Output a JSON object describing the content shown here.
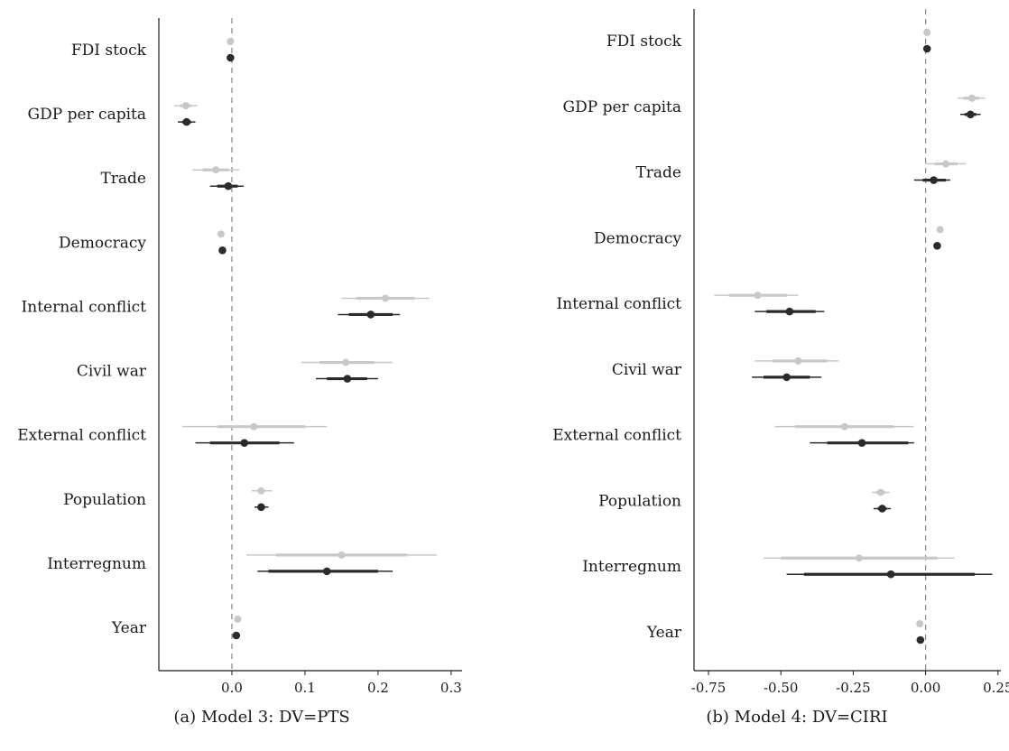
{
  "chart_data": [
    {
      "type": "scatter",
      "caption": "(a) Model 3: DV=PTS",
      "xlabel": "",
      "ylabel": "",
      "xlim": [
        -0.1,
        0.315
      ],
      "xticks": [
        0.0,
        0.1,
        0.2,
        0.3
      ],
      "xtick_labels": [
        "0.0",
        "0.1",
        "0.2",
        "0.3"
      ],
      "reference_line": 0,
      "categories": [
        "FDI stock",
        "GDP per capita",
        "Trade",
        "Democracy",
        "Internal conflict",
        "Civil war",
        "External conflict",
        "Population",
        "Interregnum",
        "Year"
      ],
      "series": [
        {
          "color": "#c8c8c8",
          "estimates": [
            -0.002,
            -0.063,
            -0.022,
            -0.015,
            0.21,
            0.156,
            0.03,
            0.04,
            0.15,
            0.008
          ],
          "ci_inner": [
            [
              -0.003,
              -0.001
            ],
            [
              -0.071,
              -0.056
            ],
            [
              -0.04,
              -0.004
            ],
            [
              -0.017,
              -0.013
            ],
            [
              0.17,
              0.25
            ],
            [
              0.12,
              0.195
            ],
            [
              -0.02,
              0.1
            ],
            [
              0.035,
              0.045
            ],
            [
              0.06,
              0.24
            ],
            [
              0.007,
              0.009
            ]
          ],
          "ci_outer": [
            [
              -0.004,
              0.0
            ],
            [
              -0.079,
              -0.047
            ],
            [
              -0.054,
              0.01
            ],
            [
              -0.018,
              -0.012
            ],
            [
              0.15,
              0.27
            ],
            [
              0.095,
              0.22
            ],
            [
              -0.068,
              0.13
            ],
            [
              0.027,
              0.055
            ],
            [
              0.02,
              0.28
            ],
            [
              0.006,
              0.01
            ]
          ]
        },
        {
          "color": "#2b2b2b",
          "estimates": [
            -0.002,
            -0.062,
            -0.005,
            -0.013,
            0.19,
            0.158,
            0.017,
            0.04,
            0.13,
            0.006
          ],
          "ci_inner": [
            [
              -0.003,
              -0.001
            ],
            [
              -0.068,
              -0.056
            ],
            [
              -0.02,
              0.008
            ],
            [
              -0.015,
              -0.011
            ],
            [
              0.16,
              0.22
            ],
            [
              0.13,
              0.185
            ],
            [
              -0.03,
              0.065
            ],
            [
              0.036,
              0.045
            ],
            [
              0.05,
              0.2
            ],
            [
              0.005,
              0.007
            ]
          ],
          "ci_outer": [
            [
              -0.004,
              0.0
            ],
            [
              -0.074,
              -0.05
            ],
            [
              -0.03,
              0.016
            ],
            [
              -0.016,
              -0.01
            ],
            [
              0.145,
              0.23
            ],
            [
              0.115,
              0.2
            ],
            [
              -0.05,
              0.085
            ],
            [
              0.031,
              0.05
            ],
            [
              0.035,
              0.22
            ],
            [
              0.004,
              0.008
            ]
          ]
        }
      ]
    },
    {
      "type": "scatter",
      "caption": "(b) Model 4: DV=CIRI",
      "xlabel": "",
      "ylabel": "",
      "xlim": [
        -0.8,
        0.26
      ],
      "xticks": [
        -0.75,
        -0.5,
        -0.25,
        0.0,
        0.25
      ],
      "xtick_labels": [
        "-0.75",
        "-0.50",
        "-0.25",
        "0.00",
        "0.25"
      ],
      "reference_line": 0,
      "categories": [
        "FDI stock",
        "GDP per capita",
        "Trade",
        "Democracy",
        "Internal conflict",
        "Civil war",
        "External conflict",
        "Population",
        "Interregnum",
        "Year"
      ],
      "series": [
        {
          "color": "#c8c8c8",
          "estimates": [
            0.005,
            0.16,
            0.07,
            0.05,
            -0.58,
            -0.44,
            -0.28,
            -0.155,
            -0.23,
            -0.02
          ],
          "ci_inner": [
            [
              0.003,
              0.007
            ],
            [
              0.13,
              0.185
            ],
            [
              0.03,
              0.11
            ],
            [
              0.047,
              0.053
            ],
            [
              -0.68,
              -0.48
            ],
            [
              -0.53,
              -0.34
            ],
            [
              -0.45,
              -0.11
            ],
            [
              -0.17,
              -0.14
            ],
            [
              -0.5,
              0.04
            ],
            [
              -0.023,
              -0.017
            ]
          ],
          "ci_outer": [
            [
              0.002,
              0.008
            ],
            [
              0.11,
              0.205
            ],
            [
              0.0,
              0.14
            ],
            [
              0.045,
              0.055
            ],
            [
              -0.73,
              -0.44
            ],
            [
              -0.59,
              -0.3
            ],
            [
              -0.52,
              -0.04
            ],
            [
              -0.185,
              -0.125
            ],
            [
              -0.56,
              0.1
            ],
            [
              -0.025,
              -0.015
            ]
          ]
        },
        {
          "color": "#2b2b2b",
          "estimates": [
            0.005,
            0.155,
            0.028,
            0.04,
            -0.47,
            -0.48,
            -0.22,
            -0.15,
            -0.12,
            -0.018
          ],
          "ci_inner": [
            [
              0.003,
              0.007
            ],
            [
              0.135,
              0.175
            ],
            [
              -0.01,
              0.07
            ],
            [
              0.037,
              0.043
            ],
            [
              -0.55,
              -0.38
            ],
            [
              -0.56,
              -0.4
            ],
            [
              -0.34,
              -0.06
            ],
            [
              -0.165,
              -0.135
            ],
            [
              -0.42,
              0.17
            ],
            [
              -0.021,
              -0.015
            ]
          ],
          "ci_outer": [
            [
              0.002,
              0.008
            ],
            [
              0.12,
              0.19
            ],
            [
              -0.04,
              0.085
            ],
            [
              0.035,
              0.045
            ],
            [
              -0.59,
              -0.35
            ],
            [
              -0.6,
              -0.36
            ],
            [
              -0.4,
              -0.04
            ],
            [
              -0.18,
              -0.12
            ],
            [
              -0.48,
              0.23
            ],
            [
              -0.023,
              -0.013
            ]
          ]
        }
      ]
    }
  ]
}
